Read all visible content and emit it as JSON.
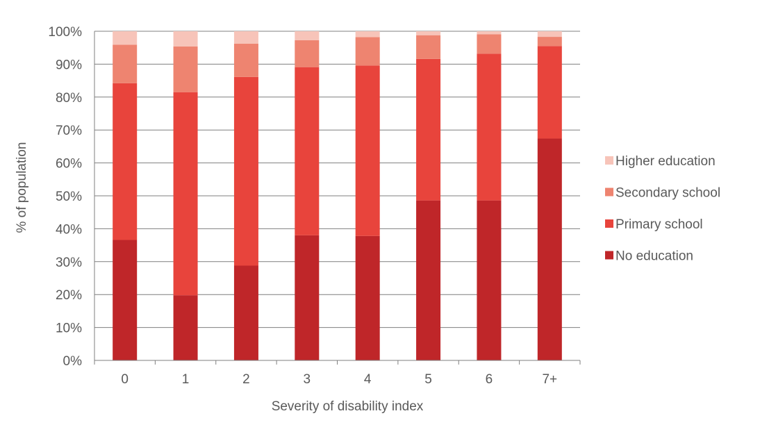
{
  "chart_data": {
    "type": "bar",
    "stacked": true,
    "normalized": true,
    "categories": [
      "0",
      "1",
      "2",
      "3",
      "4",
      "5",
      "6",
      "7+"
    ],
    "series": [
      {
        "name": "No education",
        "color": "#bf2629",
        "values": [
          36.6,
          19.8,
          28.8,
          38.0,
          37.8,
          48.6,
          48.6,
          67.4
        ]
      },
      {
        "name": "Primary school",
        "color": "#e8443c",
        "values": [
          47.6,
          61.7,
          57.3,
          51.1,
          51.8,
          43.0,
          44.6,
          28.1
        ]
      },
      {
        "name": "Secondary school",
        "color": "#ee8470",
        "values": [
          11.7,
          13.9,
          10.1,
          8.2,
          8.6,
          7.2,
          5.9,
          2.8
        ]
      },
      {
        "name": "Higher education",
        "color": "#f7c4b9",
        "values": [
          4.1,
          4.6,
          3.8,
          2.7,
          1.8,
          1.2,
          0.9,
          1.7
        ]
      }
    ],
    "xlabel": "Severity of disability index",
    "ylabel": "% of population",
    "ylim": [
      0,
      100
    ],
    "yticks": [
      "0%",
      "10%",
      "20%",
      "30%",
      "40%",
      "50%",
      "60%",
      "70%",
      "80%",
      "90%",
      "100%"
    ],
    "grid": true,
    "legend_position": "right",
    "legend_order": [
      "Higher education",
      "Secondary school",
      "Primary school",
      "No education"
    ]
  }
}
